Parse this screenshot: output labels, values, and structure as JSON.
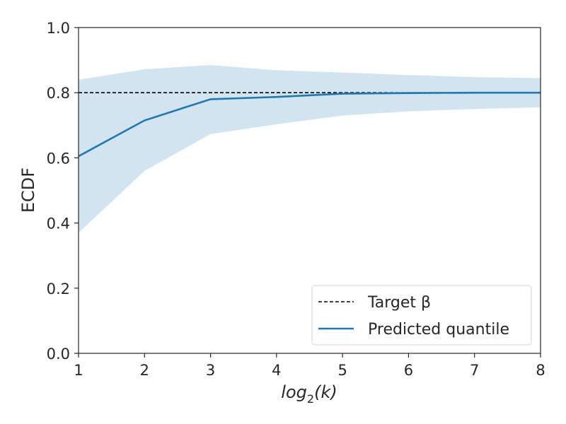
{
  "chart_data": {
    "type": "line",
    "xlabel": "log2(k)",
    "ylabel": "ECDF",
    "xlim": [
      1,
      8
    ],
    "ylim": [
      0.0,
      1.0
    ],
    "xticks": [
      "1",
      "2",
      "3",
      "4",
      "5",
      "6",
      "7",
      "8"
    ],
    "yticks": [
      "0.0",
      "0.2",
      "0.4",
      "0.6",
      "0.8",
      "1.0"
    ],
    "grid": false,
    "legend_position": "bottom-right",
    "x": [
      1,
      2,
      3,
      4,
      5,
      6,
      7,
      8
    ],
    "series": [
      {
        "name": "Target β",
        "style": "dashed",
        "color": "#000000",
        "values": [
          0.8,
          0.8,
          0.8,
          0.8,
          0.8,
          0.8,
          0.8,
          0.8
        ]
      },
      {
        "name": "Predicted quantile",
        "style": "solid",
        "color": "#1f77b4",
        "values": [
          0.605,
          0.715,
          0.78,
          0.787,
          0.797,
          0.799,
          0.8,
          0.8
        ]
      }
    ],
    "band": {
      "color": "#1f77b4",
      "opacity": 0.2,
      "lower": [
        0.37,
        0.56,
        0.673,
        0.703,
        0.73,
        0.743,
        0.75,
        0.755
      ],
      "upper": [
        0.84,
        0.872,
        0.885,
        0.869,
        0.862,
        0.854,
        0.848,
        0.845
      ]
    }
  }
}
